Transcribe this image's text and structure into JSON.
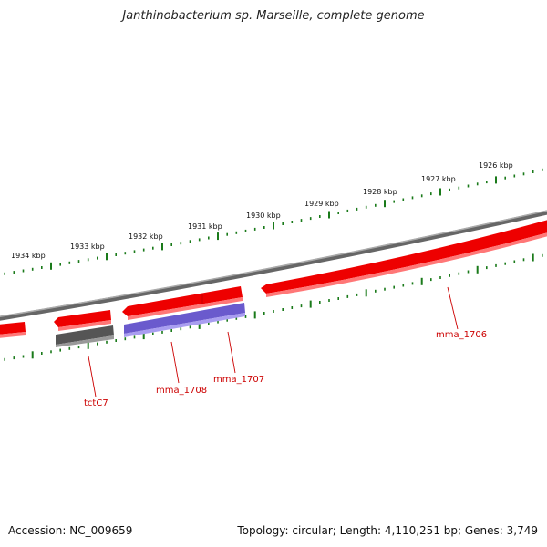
{
  "title": "Janthinobacterium sp. Marseille, complete genome",
  "footer": {
    "accession": "Accession: NC_009659",
    "summary": "Topology: circular; Length: 4,110,251 bp; Genes: 3,749"
  },
  "colors": {
    "forward_gene": "#ee0000",
    "other_gene": "#6a5acd",
    "trna_gene": "#555555",
    "backbone": "#888888",
    "ticks": "#1a7a1a",
    "label": "#cc0000"
  },
  "kbp_labels": [
    "1934 kbp",
    "1933 kbp",
    "1932 kbp",
    "1931 kbp",
    "1930 kbp",
    "1929 kbp",
    "1928 kbp",
    "1927 kbp",
    "1926 kbp"
  ],
  "gene_labels": {
    "tctC7": "tctC7",
    "mma_1708": "mma_1708",
    "mma_1707": "mma_1707",
    "mma_1706": "mma_1706"
  }
}
